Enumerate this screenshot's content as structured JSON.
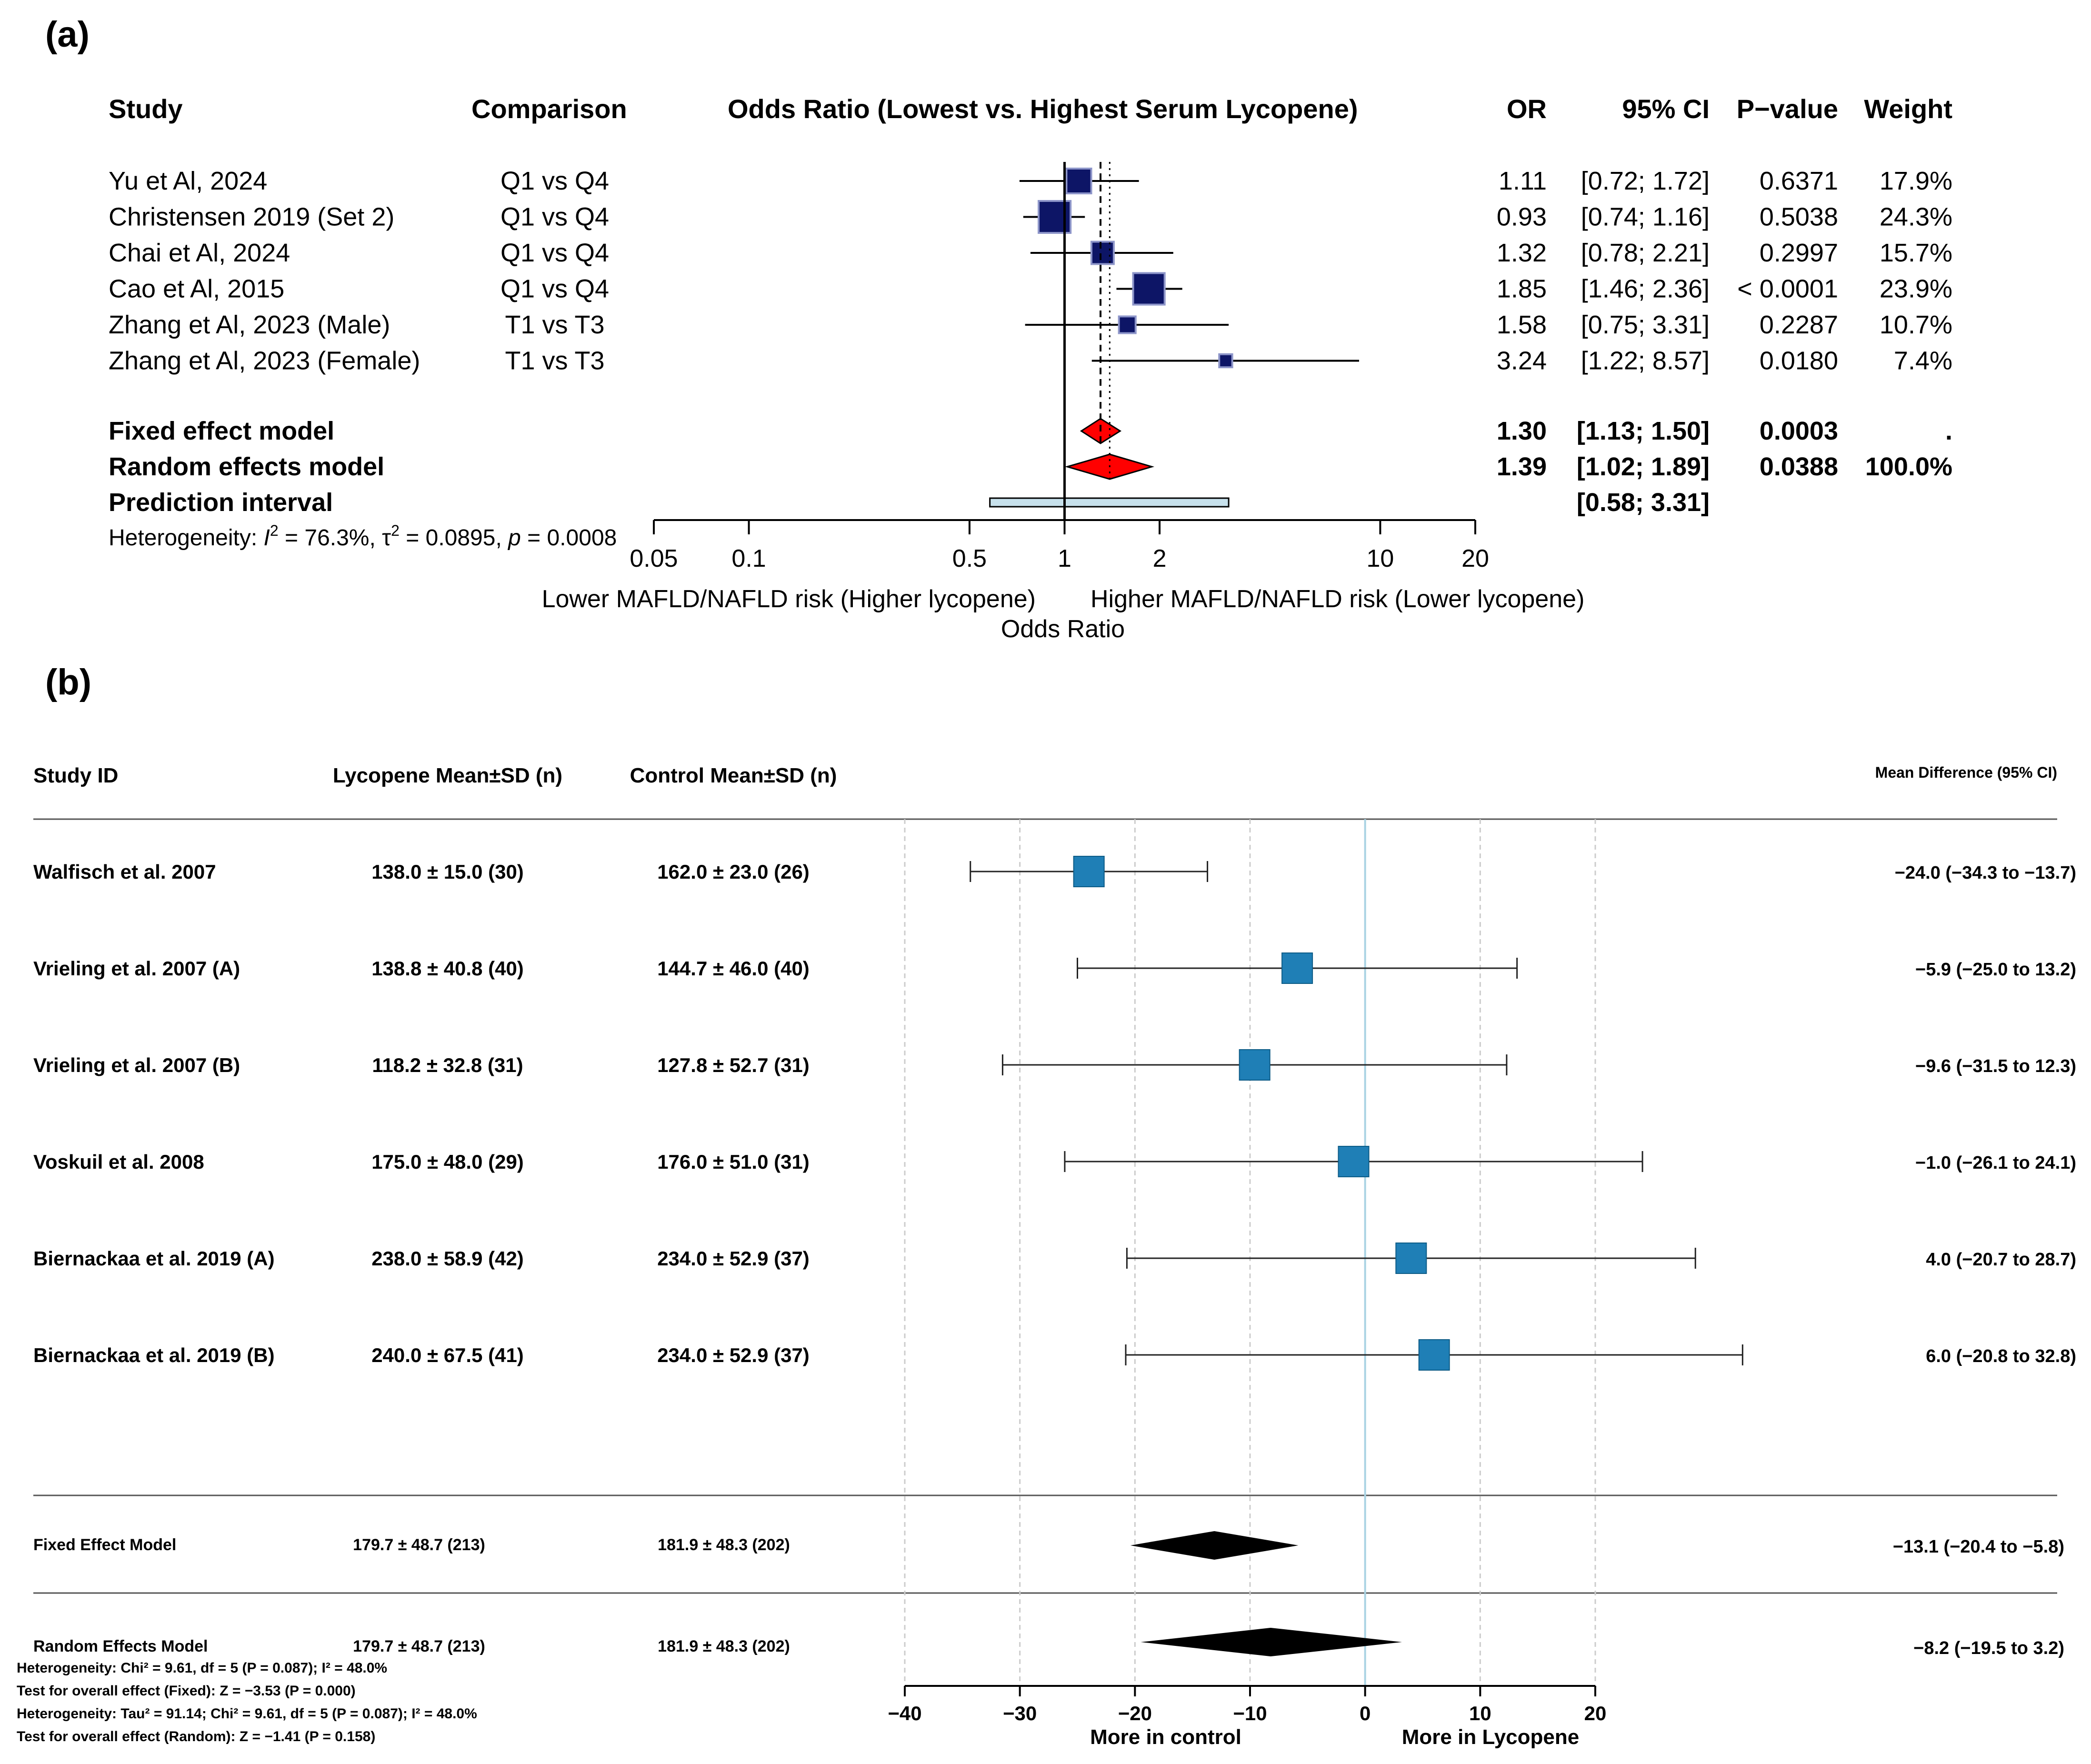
{
  "chart_data": [
    {
      "panel_label": "(a)",
      "type": "forest",
      "scale": "log",
      "headers": {
        "study": "Study",
        "comparison": "Comparison",
        "plot_title": "Odds Ratio (Lowest vs. Highest Serum Lycopene)",
        "or": "OR",
        "ci": "95% CI",
        "p": "P−value",
        "weight": "Weight"
      },
      "studies": [
        {
          "name": "Yu et Al, 2024",
          "comparison": "Q1 vs Q4",
          "or": 1.11,
          "lower": 0.72,
          "upper": 1.72,
          "or_text": "1.11",
          "ci_text": "[0.72; 1.72]",
          "p_text": "0.6371",
          "weight_text": "17.9%",
          "weight": 17.9
        },
        {
          "name": "Christensen 2019 (Set 2)",
          "comparison": "Q1 vs Q4",
          "or": 0.93,
          "lower": 0.74,
          "upper": 1.16,
          "or_text": "0.93",
          "ci_text": "[0.74; 1.16]",
          "p_text": "0.5038",
          "weight_text": "24.3%",
          "weight": 24.3
        },
        {
          "name": "Chai et Al, 2024",
          "comparison": "Q1 vs Q4",
          "or": 1.32,
          "lower": 0.78,
          "upper": 2.21,
          "or_text": "1.32",
          "ci_text": "[0.78; 2.21]",
          "p_text": "0.2997",
          "weight_text": "15.7%",
          "weight": 15.7
        },
        {
          "name": "Cao et Al, 2015",
          "comparison": "Q1 vs Q4",
          "or": 1.85,
          "lower": 1.46,
          "upper": 2.36,
          "or_text": "1.85",
          "ci_text": "[1.46; 2.36]",
          "p_text": "< 0.0001",
          "weight_text": "23.9%",
          "weight": 23.9
        },
        {
          "name": "Zhang et Al, 2023 (Male)",
          "comparison": "T1 vs T3",
          "or": 1.58,
          "lower": 0.75,
          "upper": 3.31,
          "or_text": "1.58",
          "ci_text": "[0.75; 3.31]",
          "p_text": "0.2287",
          "weight_text": "10.7%",
          "weight": 10.7
        },
        {
          "name": "Zhang et Al, 2023 (Female)",
          "comparison": "T1 vs T3",
          "or": 3.24,
          "lower": 1.22,
          "upper": 8.57,
          "or_text": "3.24",
          "ci_text": "[1.22; 8.57]",
          "p_text": "0.0180",
          "weight_text": "7.4%",
          "weight": 7.4
        }
      ],
      "fixed": {
        "name": "Fixed effect model",
        "or": 1.3,
        "lower": 1.13,
        "upper": 1.5,
        "or_text": "1.30",
        "ci_text": "[1.13; 1.50]",
        "p_text": "0.0003",
        "weight_text": "."
      },
      "random": {
        "name": "Random effects model",
        "or": 1.39,
        "lower": 1.02,
        "upper": 1.89,
        "or_text": "1.39",
        "ci_text": "[1.02; 1.89]",
        "p_text": "0.0388",
        "weight_text": "100.0%"
      },
      "prediction": {
        "name": "Prediction interval",
        "lower": 0.58,
        "upper": 3.31,
        "ci_text": "[0.58; 3.31]"
      },
      "heterogeneity": {
        "prefix": "Heterogeneity: ",
        "i2_text": "I",
        "i2_value": " = 76.3%, ",
        "tau_text": "τ",
        "tau_value": " = 0.0895, ",
        "p_text": "p",
        "p_value": " = 0.0008"
      },
      "x_ticks": [
        0.05,
        0.1,
        0.5,
        1,
        2,
        10,
        20
      ],
      "x_tick_labels": [
        "0.05",
        "0.1",
        "0.5",
        "1",
        "2",
        "10",
        "20"
      ],
      "xlim": [
        0.05,
        20
      ],
      "null_value": 1,
      "left_label": "Lower MAFLD/NAFLD risk (Higher lycopene)",
      "right_label": "Higher MAFLD/NAFLD risk (Lower lycopene)",
      "xlabel": "Odds Ratio",
      "colors": {
        "square": "#0d1566",
        "square_border": "#8d95c9",
        "diamond": "#ff0000",
        "prediction_fill": "#c7e1ec"
      }
    },
    {
      "panel_label": "(b)",
      "type": "forest",
      "scale": "linear",
      "headers": {
        "study": "Study ID",
        "lycopene": "Lycopene Mean±SD (n)",
        "control": "Control Mean±SD (n)",
        "md": "Mean Difference (95% CI)"
      },
      "studies": [
        {
          "name": "Walfisch et al. 2007",
          "lycopene": "138.0 ± 15.0 (30)",
          "control": "162.0 ± 23.0 (26)",
          "md": -24.0,
          "lower": -34.3,
          "upper": -13.7,
          "md_text": "−24.0 (−34.3 to −13.7)"
        },
        {
          "name": "Vrieling et al. 2007 (A)",
          "lycopene": "138.8 ± 40.8 (40)",
          "control": "144.7 ± 46.0 (40)",
          "md": -5.9,
          "lower": -25.0,
          "upper": 13.2,
          "md_text": "−5.9 (−25.0 to 13.2)"
        },
        {
          "name": "Vrieling et al. 2007 (B)",
          "lycopene": "118.2 ± 32.8 (31)",
          "control": "127.8 ± 52.7 (31)",
          "md": -9.6,
          "lower": -31.5,
          "upper": 12.3,
          "md_text": "−9.6 (−31.5 to 12.3)"
        },
        {
          "name": "Voskuil et al. 2008",
          "lycopene": "175.0 ± 48.0 (29)",
          "control": "176.0 ± 51.0 (31)",
          "md": -1.0,
          "lower": -26.1,
          "upper": 24.1,
          "md_text": "−1.0 (−26.1 to 24.1)"
        },
        {
          "name": "Biernackaa et al. 2019 (A)",
          "lycopene": "238.0 ± 58.9 (42)",
          "control": "234.0 ± 52.9 (37)",
          "md": 4.0,
          "lower": -20.7,
          "upper": 28.7,
          "md_text": "4.0 (−20.7 to 28.7)"
        },
        {
          "name": "Biernackaa et al. 2019 (B)",
          "lycopene": "240.0 ± 67.5 (41)",
          "control": "234.0 ± 52.9 (37)",
          "md": 6.0,
          "lower": -20.8,
          "upper": 32.8,
          "md_text": "6.0 (−20.8 to 32.8)"
        }
      ],
      "fixed": {
        "name": "Fixed Effect Model",
        "lycopene": "179.7 ± 48.7 (213)",
        "control": "181.9 ± 48.3 (202)",
        "md": -13.1,
        "lower": -20.4,
        "upper": -5.8,
        "md_text": "−13.1 (−20.4 to −5.8)"
      },
      "random": {
        "name": "Random Effects Model",
        "lycopene": "179.7 ± 48.7 (213)",
        "control": "181.9 ± 48.3 (202)",
        "md": -8.2,
        "lower": -19.5,
        "upper": 3.2,
        "md_text": "−8.2 (−19.5 to 3.2)"
      },
      "footnotes": [
        "Heterogeneity: Chi² = 9.61, df = 5 (P = 0.087); I² = 48.0%",
        "Test for overall effect (Fixed): Z = −3.53 (P = 0.000)",
        "Heterogeneity: Tau² = 91.14; Chi² = 9.61, df = 5 (P = 0.087); I² = 48.0%",
        "Test for overall effect (Random): Z = −1.41 (P = 0.158)"
      ],
      "x_ticks": [
        -40,
        -30,
        -20,
        -10,
        0,
        10,
        20
      ],
      "x_tick_labels": [
        "−40",
        "−30",
        "−20",
        "−10",
        "0",
        "10",
        "20"
      ],
      "xlim": [
        -40,
        20
      ],
      "null_value": 0,
      "left_label": "More in control",
      "right_label": "More in Lycopene",
      "colors": {
        "square": "#1f7fb6",
        "diamond": "#000000",
        "null_line": "#a9d3e3",
        "grid": "#cccccc"
      }
    }
  ]
}
